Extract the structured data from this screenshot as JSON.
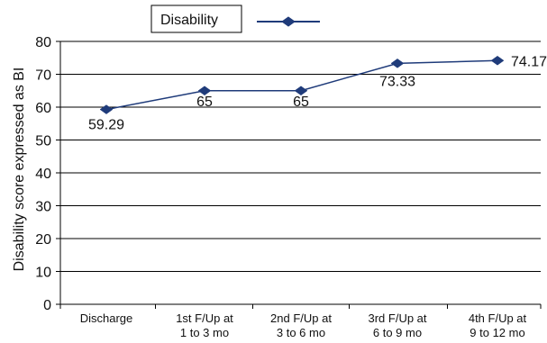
{
  "chart_data": {
    "type": "line",
    "categories": [
      [
        "Discharge"
      ],
      [
        "1st F/Up at",
        "1 to 3 mo"
      ],
      [
        "2nd F/Up at",
        "3 to 6 mo"
      ],
      [
        "3rd   F/Up at",
        "6 to 9 mo"
      ],
      [
        "4th   F/Up at",
        "9 to 12 mo"
      ]
    ],
    "series": [
      {
        "name": "Disability",
        "values": [
          59.29,
          65,
          65,
          73.33,
          74.17
        ],
        "labels": [
          "59.29",
          "65",
          "65",
          "73.33",
          "74.17"
        ],
        "color": "#1F3B7A",
        "marker": "diamond"
      }
    ],
    "ylabel": "Disability score expressed as BI",
    "xlabel": "",
    "title": "",
    "ylim": [
      0,
      80
    ],
    "yticks": [
      0,
      10,
      20,
      30,
      40,
      50,
      60,
      70,
      80
    ],
    "grid": "horizontal",
    "legend_position": "top-center"
  }
}
